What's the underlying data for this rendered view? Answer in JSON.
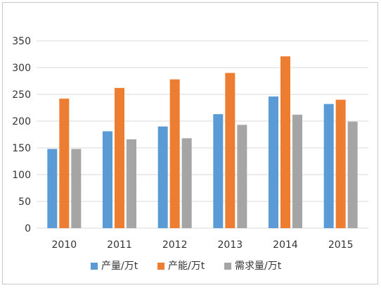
{
  "chart_data": {
    "type": "bar",
    "categories": [
      "2010",
      "2011",
      "2012",
      "2013",
      "2014",
      "2015"
    ],
    "series": [
      {
        "name": "产量/万t",
        "values": [
          148,
          181,
          190,
          213,
          246,
          232
        ],
        "color": "#5b9bd5"
      },
      {
        "name": "产能/万t",
        "values": [
          242,
          262,
          278,
          290,
          321,
          240
        ],
        "color": "#ed7d31"
      },
      {
        "name": "需求量/万t",
        "values": [
          148,
          166,
          168,
          193,
          212,
          199
        ],
        "color": "#a5a5a5"
      }
    ],
    "y_ticks": [
      "0",
      "50",
      "100",
      "150",
      "200",
      "250",
      "300",
      "350"
    ],
    "ylim": [
      0,
      350
    ],
    "grid": true,
    "legend_position": "bottom",
    "gridline_color": "#d9d9d9"
  }
}
